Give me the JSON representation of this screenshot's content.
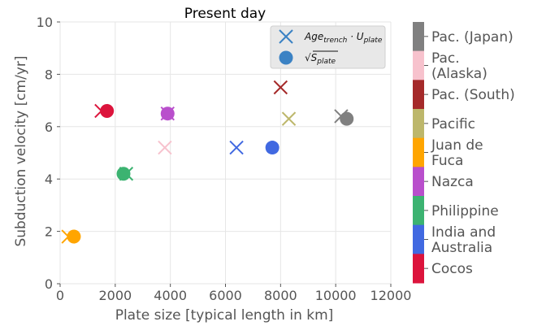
{
  "chart_data": {
    "type": "scatter",
    "title": "Present day",
    "xlabel": "Plate size [typical length in km]",
    "ylabel": "Subduction velocity [cm/yr]",
    "xlim": [
      0,
      12000
    ],
    "ylim": [
      0,
      10
    ],
    "xticks": [
      0,
      2000,
      4000,
      6000,
      8000,
      10000,
      12000
    ],
    "yticks": [
      0,
      2,
      4,
      6,
      8,
      10
    ],
    "grid": true,
    "legend": {
      "placement": "top-right",
      "entries": [
        {
          "marker": "x",
          "label_base": "Age",
          "label_sub": "trench",
          "label_mid": " · U",
          "label_sub2": "plate"
        },
        {
          "marker": "circle",
          "label_sqrt": "√",
          "label_base": "S",
          "label_sub": "plate"
        }
      ]
    },
    "series": [
      {
        "name": "Pac. (Japan)",
        "color": "#808080",
        "x_cross": 10200,
        "y_cross": 6.4,
        "x_circle": 10400,
        "y_circle": 6.3
      },
      {
        "name": "Pac. (Alaska)",
        "color": "#f7c2cd",
        "x_cross": 3800,
        "y_cross": 5.2,
        "x_circle": null,
        "y_circle": null
      },
      {
        "name": "Pac. (South)",
        "color": "#a52a2a",
        "x_cross": 8000,
        "y_cross": 7.5,
        "x_circle": null,
        "y_circle": null
      },
      {
        "name": "Pacific",
        "color": "#bdb76b",
        "x_cross": 8300,
        "y_cross": 6.3,
        "x_circle": null,
        "y_circle": null
      },
      {
        "name": "Juan de Fuca",
        "color": "#ffa500",
        "x_cross": 300,
        "y_cross": 1.8,
        "x_circle": 500,
        "y_circle": 1.8
      },
      {
        "name": "Nazca",
        "color": "#b94fcc",
        "x_cross": 3900,
        "y_cross": 6.5,
        "x_circle": 3900,
        "y_circle": 6.5
      },
      {
        "name": "Philippine",
        "color": "#3cb371",
        "x_cross": 2400,
        "y_cross": 4.2,
        "x_circle": 2300,
        "y_circle": 4.2
      },
      {
        "name": "India and Australia",
        "color": "#4169e1",
        "x_cross": 6400,
        "y_cross": 5.2,
        "x_circle": 7700,
        "y_circle": 5.2
      },
      {
        "name": "Cocos",
        "color": "#dc143c",
        "x_cross": 1500,
        "y_cross": 6.6,
        "x_circle": 1700,
        "y_circle": 6.6
      }
    ],
    "colorbar": {
      "labels": [
        "Pac. (Japan)",
        "Pac. (Alaska)",
        "Pac. (South)",
        "Pacific",
        "Juan de Fuca",
        "Nazca",
        "Philippine",
        "India and Australia",
        "Cocos"
      ],
      "colors": [
        "#808080",
        "#f7c2cd",
        "#a52a2a",
        "#bdb76b",
        "#ffa500",
        "#b94fcc",
        "#3cb371",
        "#4169e1",
        "#dc143c"
      ]
    }
  }
}
